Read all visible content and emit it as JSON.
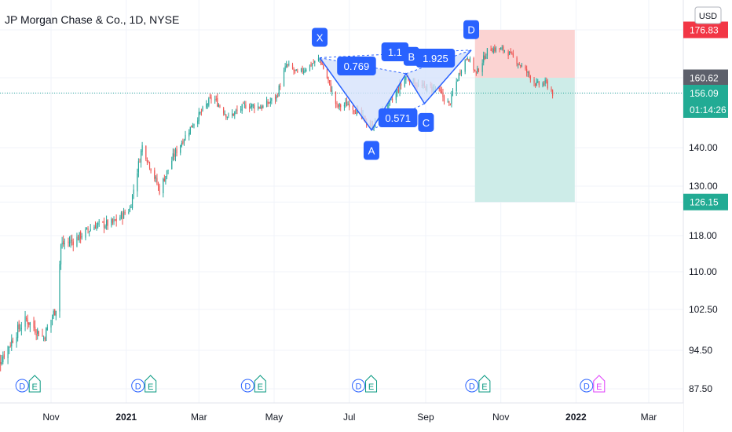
{
  "header": {
    "title": "JP Morgan Chase & Co., 1D, NYSE"
  },
  "currency_button": "USD",
  "colors": {
    "up": "#26a69a",
    "down": "#ef5350",
    "pattern": "#2962ff",
    "pattern_fill": "#d6e2fb",
    "stop_zone": "#fbd3d2",
    "target_zone": "#cdece8",
    "grid": "#f0f3fa",
    "text": "#131722",
    "axis_text": "#131722",
    "dividend_e": "#089981",
    "earnings_future": "#e040fb"
  },
  "price_badges": [
    {
      "text": "176.83",
      "bg": "#f23645",
      "fg": "#ffffff"
    },
    {
      "text": "160.62",
      "bg": "#5d606b",
      "fg": "#ffffff"
    },
    {
      "text": "156.09",
      "bg": "#22ab94",
      "fg": "#ffffff"
    },
    {
      "text": "01:14:26",
      "bg": "#22ab94",
      "fg": "#ffffff"
    },
    {
      "text": "126.15",
      "bg": "#22ab94",
      "fg": "#ffffff"
    }
  ],
  "pattern_points": [
    {
      "label": "X",
      "date": "2021-06-07",
      "price": 167.4
    },
    {
      "label": "A",
      "date": "2021-07-19",
      "price": 145.2
    },
    {
      "label": "B",
      "date": "2021-08-16",
      "price": 162.0
    },
    {
      "label": "C",
      "date": "2021-08-31",
      "price": 153.0
    },
    {
      "label": "D",
      "date": "2021-10-08",
      "price": 170.0
    }
  ],
  "pattern_ratios": [
    "0.769",
    "1.1",
    "0.571",
    "1.925"
  ],
  "event_markers": [
    {
      "date": "2020-10-13",
      "letters": [
        "D",
        "E"
      ]
    },
    {
      "date": "2021-01-15",
      "letters": [
        "D",
        "E"
      ]
    },
    {
      "date": "2021-04-14",
      "letters": [
        "D",
        "E"
      ]
    },
    {
      "date": "2021-07-13",
      "letters": [
        "D",
        "E"
      ]
    },
    {
      "date": "2021-10-13",
      "letters": [
        "D",
        "E"
      ]
    },
    {
      "date": "2022-01-14",
      "letters": [
        "D",
        "E"
      ]
    }
  ],
  "chart_data": {
    "type": "candlestick",
    "title": "JP Morgan Chase & Co., 1D, NYSE",
    "xlabel": "",
    "ylabel": "",
    "currency": "USD",
    "y_ticks": [
      87.5,
      94.5,
      102.5,
      110.0,
      118.0,
      126.15,
      130.0,
      140.0,
      156.09,
      160.62,
      176.83
    ],
    "y_tick_labels": [
      "87.50",
      "94.50",
      "102.50",
      "110.00",
      "118.00",
      "126.15",
      "130.00",
      "140.00",
      "156.09",
      "160.62",
      "176.83"
    ],
    "x_tick_labels": [
      "Nov",
      "2021",
      "Mar",
      "May",
      "Jul",
      "Sep",
      "Nov",
      "2022",
      "Mar"
    ],
    "x_tick_dates": [
      "2020-11-01",
      "2021-01-01",
      "2021-03-01",
      "2021-05-01",
      "2021-07-01",
      "2021-09-01",
      "2021-11-01",
      "2022-01-01",
      "2022-03-01"
    ],
    "last_price": 156.09,
    "countdown": "01:14:26",
    "trade_box": {
      "start_date": "2021-10-11",
      "end_date": "2021-12-31",
      "entry": 160.62,
      "stop": 176.83,
      "target": 126.15
    },
    "price_path": [
      [
        "2020-09-14",
        90.0
      ],
      [
        "2020-09-28",
        95.5
      ],
      [
        "2020-10-05",
        98.5
      ],
      [
        "2020-10-12",
        100.5
      ],
      [
        "2020-10-26",
        97.0
      ],
      [
        "2020-11-06",
        103.5
      ],
      [
        "2020-11-09",
        116.0
      ],
      [
        "2020-11-20",
        117.0
      ],
      [
        "2020-12-07",
        120.5
      ],
      [
        "2020-12-21",
        121.0
      ],
      [
        "2021-01-04",
        124.5
      ],
      [
        "2021-01-14",
        140.5
      ],
      [
        "2021-01-28",
        129.0
      ],
      [
        "2021-02-08",
        137.5
      ],
      [
        "2021-02-24",
        147.0
      ],
      [
        "2021-03-12",
        155.0
      ],
      [
        "2021-03-25",
        149.0
      ],
      [
        "2021-04-08",
        152.5
      ],
      [
        "2021-04-22",
        152.0
      ],
      [
        "2021-05-03",
        155.0
      ],
      [
        "2021-05-11",
        165.0
      ],
      [
        "2021-05-20",
        162.0
      ],
      [
        "2021-06-07",
        167.0
      ],
      [
        "2021-06-21",
        152.0
      ],
      [
        "2021-07-01",
        153.0
      ],
      [
        "2021-07-19",
        146.0
      ],
      [
        "2021-08-03",
        153.0
      ],
      [
        "2021-08-16",
        161.0
      ],
      [
        "2021-08-27",
        158.0
      ],
      [
        "2021-09-10",
        157.5
      ],
      [
        "2021-09-20",
        152.5
      ],
      [
        "2021-09-30",
        164.0
      ],
      [
        "2021-10-05",
        168.0
      ],
      [
        "2021-10-12",
        162.0
      ],
      [
        "2021-10-22",
        170.5
      ],
      [
        "2021-11-05",
        170.0
      ],
      [
        "2021-11-19",
        164.0
      ],
      [
        "2021-11-30",
        158.5
      ],
      [
        "2021-12-08",
        159.0
      ],
      [
        "2021-12-13",
        156.09
      ]
    ]
  }
}
